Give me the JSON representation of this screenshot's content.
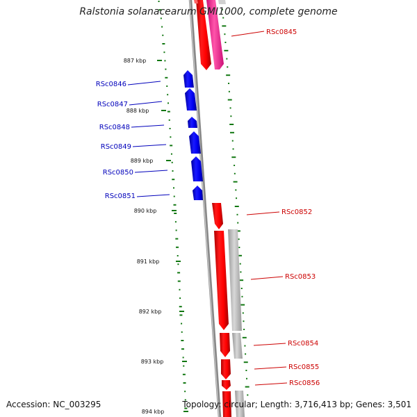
{
  "title": "Ralstonia solanacearum GMI1000, complete genome",
  "footer": {
    "accession": "Accession: NC_003295",
    "topology": "Topology: circular; Length: 3,716,413 bp; Genes: 3,501"
  },
  "colors": {
    "forward_gene": "#ff0000",
    "reverse_gene": "#0000ee",
    "forward_label": "#cc0000",
    "reverse_label": "#0000bb",
    "pink_feature": "#ff3399",
    "gray_feature": "#bbbbbb",
    "gc_skew": "#117711",
    "backbone": "#888888"
  },
  "ticks": [
    {
      "label": "887 kbp"
    },
    {
      "label": "888 kbp"
    },
    {
      "label": "889 kbp"
    },
    {
      "label": "890 kbp"
    },
    {
      "label": "891 kbp"
    },
    {
      "label": "892 kbp"
    },
    {
      "label": "893 kbp"
    },
    {
      "label": "894 kbp"
    }
  ],
  "genes": [
    {
      "name": "RSc0845",
      "strand": "forward"
    },
    {
      "name": "RSc0846",
      "strand": "reverse"
    },
    {
      "name": "RSc0847",
      "strand": "reverse"
    },
    {
      "name": "RSc0848",
      "strand": "reverse"
    },
    {
      "name": "RSc0849",
      "strand": "reverse"
    },
    {
      "name": "RSc0850",
      "strand": "reverse"
    },
    {
      "name": "RSc0851",
      "strand": "reverse"
    },
    {
      "name": "RSc0852",
      "strand": "forward"
    },
    {
      "name": "RSc0853",
      "strand": "forward"
    },
    {
      "name": "RSc0854",
      "strand": "forward"
    },
    {
      "name": "RSc0855",
      "strand": "forward"
    },
    {
      "name": "RSc0856",
      "strand": "forward"
    }
  ]
}
